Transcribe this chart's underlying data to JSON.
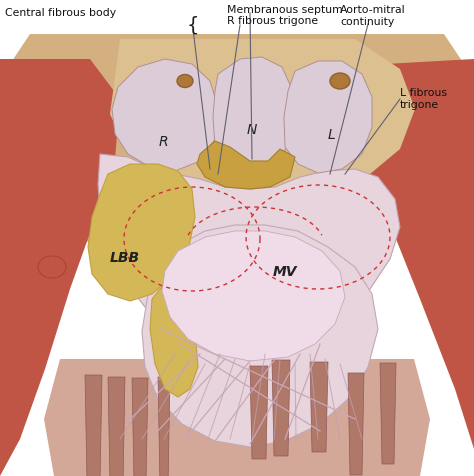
{
  "figsize": [
    4.74,
    4.77
  ],
  "dpi": 100,
  "bg_color": "#ffffff",
  "labels": {
    "central_fibrous_body": "Central fibrous body",
    "membranous_septum": "Membranous septum",
    "r_fibrous_trigone": "R fibrous trigone",
    "aorto_mitral": "Aorto-mitral\ncontinuity",
    "l_fibrous_trigone": "L fibrous\ntrigone",
    "R": "R",
    "N": "N",
    "L": "L",
    "LBB": "LBB",
    "MV": "MV"
  },
  "colors": {
    "bg_white": "#ffffff",
    "aorta_outer": "#d4b080",
    "aorta_inner": "#c8a060",
    "valve_pink": "#e0c8d0",
    "valve_pink2": "#d4b8c4",
    "muscle_red": "#c05545",
    "muscle_red2": "#a84535",
    "muscle_pink": "#d4a090",
    "lbb_yellow": "#d4b858",
    "lbb_yellow2": "#c0a040",
    "fibrous_gold": "#c8a040",
    "mv_pale": "#ead0d8",
    "mv_stripe": "#c8a8b4",
    "annot_line": "#606070",
    "dotted": "#cc3333",
    "chordae": "#c0a0a8",
    "small_bump": "#c09070"
  }
}
